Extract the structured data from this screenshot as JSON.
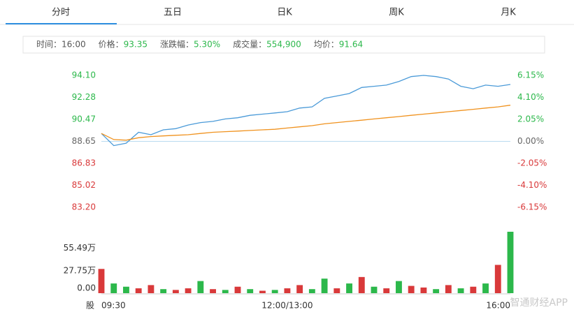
{
  "tabs": [
    "分时",
    "五日",
    "日K",
    "周K",
    "月K"
  ],
  "info": [
    {
      "label": "时间：",
      "value": "16:00"
    },
    {
      "label": "价格：",
      "value": "93.35"
    },
    {
      "label": "涨跌幅：",
      "value": "5.30%"
    },
    {
      "label": "成交量：",
      "value": "554,900"
    },
    {
      "label": "均价：",
      "value": "91.64"
    }
  ],
  "footer": {
    "market": "股",
    "watermark": "智通财经APP"
  },
  "chart_data": [
    {
      "type": "line",
      "series": [
        {
          "name": "价格",
          "color": "#4a9ad8",
          "values": [
            89.3,
            88.3,
            88.5,
            89.4,
            89.2,
            89.6,
            89.7,
            90.0,
            90.2,
            90.3,
            90.5,
            90.6,
            90.8,
            90.9,
            91.0,
            91.1,
            91.4,
            91.5,
            92.2,
            92.4,
            92.6,
            93.1,
            93.2,
            93.3,
            93.6,
            94.0,
            94.1,
            94.0,
            93.8,
            93.2,
            93.0,
            93.3,
            93.2,
            93.35
          ]
        },
        {
          "name": "均价",
          "color": "#f0921e",
          "values": [
            89.3,
            88.8,
            88.75,
            88.95,
            89.05,
            89.1,
            89.15,
            89.2,
            89.3,
            89.4,
            89.45,
            89.5,
            89.55,
            89.6,
            89.65,
            89.75,
            89.85,
            89.95,
            90.1,
            90.2,
            90.3,
            90.4,
            90.5,
            90.6,
            90.7,
            90.8,
            90.9,
            91.0,
            91.1,
            91.2,
            91.3,
            91.4,
            91.5,
            91.64
          ]
        }
      ],
      "ylim": [
        83.2,
        94.1
      ],
      "yticks": [
        {
          "value": 94.1,
          "label": "94.10"
        },
        {
          "value": 92.28,
          "label": "92.28"
        },
        {
          "value": 90.47,
          "label": "90.47"
        },
        {
          "value": 88.65,
          "label": "88.65"
        },
        {
          "value": 86.83,
          "label": "86.83"
        },
        {
          "value": 85.02,
          "label": "85.02"
        },
        {
          "value": 83.2,
          "label": "83.20"
        }
      ],
      "y2lim": [
        -6.15,
        6.15
      ],
      "y2ticks": [
        {
          "value": 6.15,
          "label": "6.15%"
        },
        {
          "value": 4.1,
          "label": "4.10%"
        },
        {
          "value": 2.05,
          "label": "2.05%"
        },
        {
          "value": 0,
          "label": "0.00%"
        },
        {
          "value": -2.05,
          "label": "-2.05%"
        },
        {
          "value": -4.1,
          "label": "-4.10%"
        },
        {
          "value": -6.15,
          "label": "-6.15%"
        }
      ],
      "baseline": 88.65,
      "baseline_color": "#b9dbf0",
      "up_color": "#2cb84b",
      "down_color": "#d9393a",
      "flat_color": "#666666"
    },
    {
      "type": "bar",
      "categories": [
        "09:30",
        null,
        null,
        null,
        null,
        null,
        null,
        null,
        null,
        null,
        null,
        null,
        null,
        null,
        null,
        "12:00/13:00",
        null,
        null,
        null,
        null,
        null,
        null,
        null,
        null,
        null,
        null,
        null,
        null,
        null,
        null,
        null,
        null,
        null,
        "16:00"
      ],
      "values": [
        30,
        12,
        8,
        6,
        10,
        5,
        4,
        6,
        15,
        5,
        4,
        8,
        5,
        3,
        4,
        6,
        10,
        5,
        18,
        6,
        12,
        20,
        8,
        6,
        15,
        9,
        7,
        5,
        10,
        6,
        8,
        12,
        35,
        76
      ],
      "colors": [
        "#d9393a",
        "#2cb84b",
        "#2cb84b",
        "#d9393a",
        "#d9393a",
        "#2cb84b",
        "#d9393a",
        "#d9393a",
        "#2cb84b",
        "#d9393a",
        "#2cb84b",
        "#d9393a",
        "#2cb84b",
        "#d9393a",
        "#2cb84b",
        "#d9393a",
        "#d9393a",
        "#2cb84b",
        "#2cb84b",
        "#d9393a",
        "#2cb84b",
        "#d9393a",
        "#2cb84b",
        "#d9393a",
        "#2cb84b",
        "#d9393a",
        "#d9393a",
        "#2cb84b",
        "#d9393a",
        "#2cb84b",
        "#d9393a",
        "#2cb84b",
        "#d9393a",
        "#2cb84b"
      ],
      "ylim": [
        0,
        76
      ],
      "yticks": [
        {
          "value": 0,
          "label": "0.00"
        },
        {
          "value": 27.75,
          "label": "27.75万"
        },
        {
          "value": 55.49,
          "label": "55.49万"
        }
      ]
    }
  ]
}
